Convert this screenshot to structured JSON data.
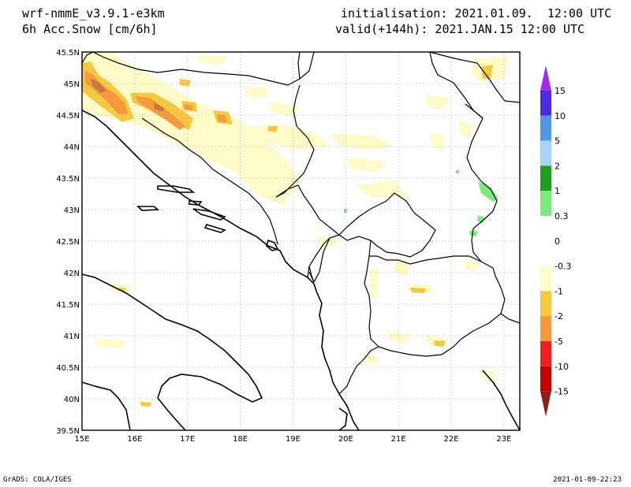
{
  "header": {
    "model": "wrf-nmmE_v3.9.1-e3km",
    "variable": "6h Acc.Snow [cm/6h]",
    "initialisation": "initialisation: 2021.01.09.  12:00 UTC",
    "valid": "valid(+144h): 2021.JAN.15 12:00 UTC"
  },
  "footer": {
    "left": "GrADS: COLA/IGES",
    "right": "2021-01-09-22:23"
  },
  "map": {
    "lat_labels": [
      "45.5N",
      "45N",
      "44.5N",
      "44N",
      "43.5N",
      "43N",
      "42.5N",
      "42N",
      "41.5N",
      "41N",
      "40.5N",
      "40N",
      "39.5N"
    ],
    "lon_labels": [
      "15E",
      "16E",
      "17E",
      "18E",
      "19E",
      "20E",
      "21E",
      "22E",
      "23E"
    ],
    "lat_range": [
      39.5,
      45.5
    ],
    "lon_range": [
      15,
      23.3
    ],
    "grid": "dotted"
  },
  "colorbar": {
    "top_arrow_color": "#a02ee8",
    "bottom_arrow_color": "#8b2020",
    "bins": [
      {
        "color": "#4a2be8"
      },
      {
        "color": "#4f98e6"
      },
      {
        "color": "#a6d3f7"
      },
      {
        "color": "#1e9e1e"
      },
      {
        "color": "#7dea7d"
      },
      {
        "color": "#ffffff"
      },
      {
        "color": "#ffffff"
      },
      {
        "color": "#fffbc8"
      },
      {
        "color": "#f5c842"
      },
      {
        "color": "#f59a3c"
      },
      {
        "color": "#f02020"
      },
      {
        "color": "#c80000"
      }
    ],
    "labels": [
      "15",
      "10",
      "5",
      "2",
      "1",
      "0.3",
      "0",
      "-0.3",
      "-1",
      "-2",
      "-5",
      "-10",
      "-15"
    ]
  },
  "colors": {
    "snow_light": "#fffbc8",
    "snow_med": "#f5c842",
    "snow_heavy": "#f59a3c",
    "snow_core": "#d8883a",
    "green_light": "#7dea7d"
  }
}
